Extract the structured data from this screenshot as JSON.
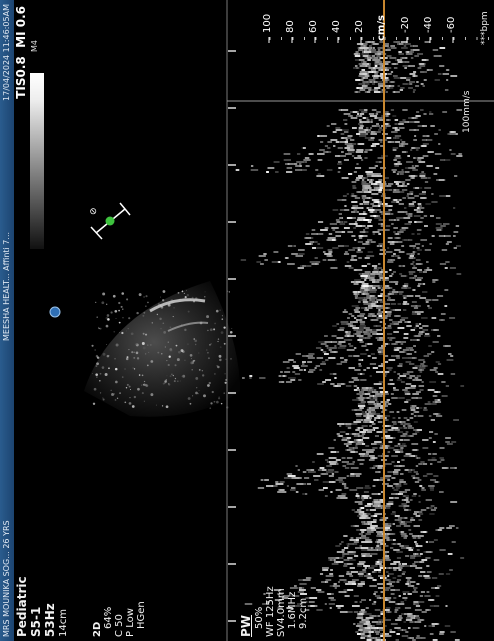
{
  "header": {
    "patient": "MRS MOUNIKA SOG... 26 YRS",
    "clinic": "MEESHA HEALT... Affinti 7...",
    "datetime": "17/04/2024 11:46:05AM"
  },
  "params": {
    "preset": "Pediatric",
    "probe": "S5-1",
    "frame_rate": "53Hz",
    "depth": "14cm",
    "mode_2d": "2D",
    "gain_2d": "64%",
    "compression": "C 50",
    "persistence": "P Low",
    "frequency": "HGen"
  },
  "indices": {
    "tis": "TIS0.8",
    "mi": "MI 0.6"
  },
  "map_label": "M4",
  "pw": {
    "mode": "PW",
    "gain": "50%",
    "wall_filter": "WF 125Hz",
    "sample_volume": "SV4.0mm",
    "frequency": "1.6MHz",
    "depth": "9.2cm"
  },
  "velocity_scale": {
    "unit": "cm/s",
    "ticks": [
      "100",
      "80",
      "60",
      "40",
      "20",
      "-20",
      "-40",
      "-60"
    ]
  },
  "sweep_speed": "100mm/s",
  "heart_rate": "***bpm",
  "colors": {
    "baseline": "#c8872f",
    "header": "#245183"
  }
}
